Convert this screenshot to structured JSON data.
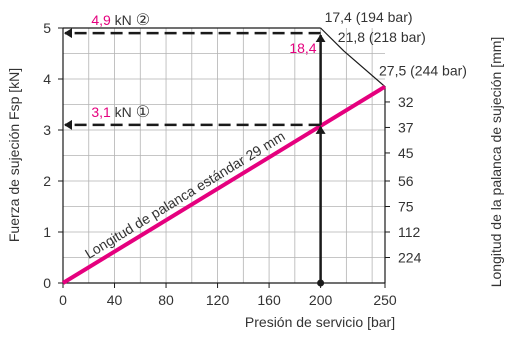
{
  "chart_data": {
    "type": "line",
    "title": "",
    "xlabel": "Presión de servicio [bar]",
    "ylabel": "Fuerza de sujeción Fsp [kN]",
    "y2label": "Longitud de la palanca de sujeción [mm]",
    "xlim": [
      0,
      250
    ],
    "ylim": [
      0,
      5
    ],
    "xticks": [
      0,
      40,
      80,
      120,
      160,
      200,
      250
    ],
    "yticks": [
      0,
      1,
      2,
      3,
      4,
      5
    ],
    "grid": true,
    "line": {
      "label": "Longitud de palanca estándar 29 mm",
      "color": "#e5007e",
      "x": [
        0,
        250
      ],
      "y": [
        0,
        3.85
      ]
    },
    "boundary": [
      {
        "x": 200,
        "y": 5.0,
        "label": "17,4 (194 bar)"
      },
      {
        "x": 218,
        "y": 4.55,
        "label": "21,8 (218 bar)"
      },
      {
        "x": 250,
        "y": 3.85,
        "label": "27,5 (244 bar)"
      }
    ],
    "right_axis_labels": [
      {
        "label": "32",
        "y": 3.55
      },
      {
        "label": "37",
        "y": 3.05
      },
      {
        "label": "45",
        "y": 2.55
      },
      {
        "label": "56",
        "y": 2.0
      },
      {
        "label": "75",
        "y": 1.5
      },
      {
        "label": "112",
        "y": 1.0
      },
      {
        "label": "224",
        "y": 0.5
      }
    ],
    "annotations": [
      {
        "id": "one",
        "y": 3.1,
        "x_start": 200,
        "value": "3,1",
        "unit": "kN",
        "marker": "①"
      },
      {
        "id": "two",
        "y": 4.9,
        "x_start": 200,
        "value": "4,9",
        "unit": "kN",
        "marker": "②"
      }
    ],
    "lever_callout": {
      "label": "18,4",
      "x": 200
    },
    "arrow_x": 200,
    "colors": {
      "accent": "#e5007e",
      "grid": "#b3b3b3",
      "axis": "#1a1a1a",
      "text": "#333333"
    }
  }
}
